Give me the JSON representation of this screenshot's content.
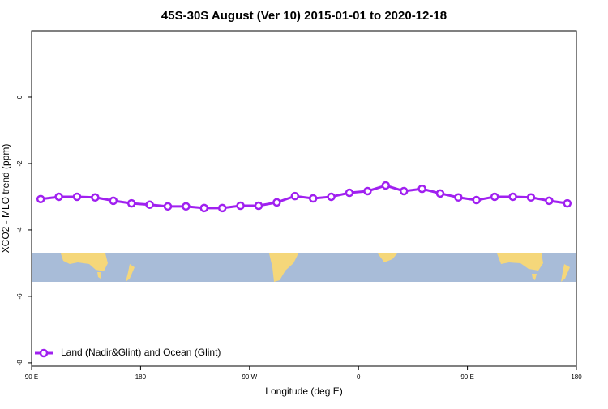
{
  "chart_data": {
    "type": "line",
    "title": "45S-30S August (Ver 10)   2015-01-01 to 2020-12-18",
    "x_label": "Longitude (deg E)",
    "y_label": "XCO2 - MLO trend (ppm)",
    "x": [
      97.5,
      112.5,
      127.5,
      142.5,
      157.5,
      172.5,
      187.5,
      202.5,
      217.5,
      232.5,
      247.5,
      262.5,
      277.5,
      292.5,
      307.5,
      322.5,
      337.5,
      352.5,
      367.5,
      382.5,
      397.5,
      412.5,
      427.5,
      442.5,
      457.5,
      472.5,
      487.5,
      502.5,
      517.5,
      532.5
    ],
    "series": [
      {
        "name": "Land (Nadir&Glint) and Ocean (Glint)",
        "color": "#a020f0",
        "values": [
          -3.07,
          -3.0,
          -3.0,
          -3.02,
          -3.12,
          -3.2,
          -3.24,
          -3.29,
          -3.29,
          -3.34,
          -3.34,
          -3.27,
          -3.27,
          -3.17,
          -2.98,
          -3.05,
          -3.0,
          -2.88,
          -2.83,
          -2.66,
          -2.83,
          -2.76,
          -2.9,
          -3.02,
          -3.1,
          -3.0,
          -3.0,
          -3.02,
          -3.12,
          -3.2
        ]
      }
    ],
    "xlim": [
      90,
      540
    ],
    "xticks": [
      {
        "value": 90,
        "label": "90 E"
      },
      {
        "value": 180,
        "label": "180"
      },
      {
        "value": 270,
        "label": "90 W"
      },
      {
        "value": 360,
        "label": "0"
      },
      {
        "value": 450,
        "label": "90 E"
      },
      {
        "value": 540,
        "label": "180"
      }
    ],
    "ylim": [
      -8.1,
      2
    ],
    "yticks": [
      0,
      -2,
      -4,
      -6,
      -8
    ],
    "legend": "bottom-left"
  }
}
